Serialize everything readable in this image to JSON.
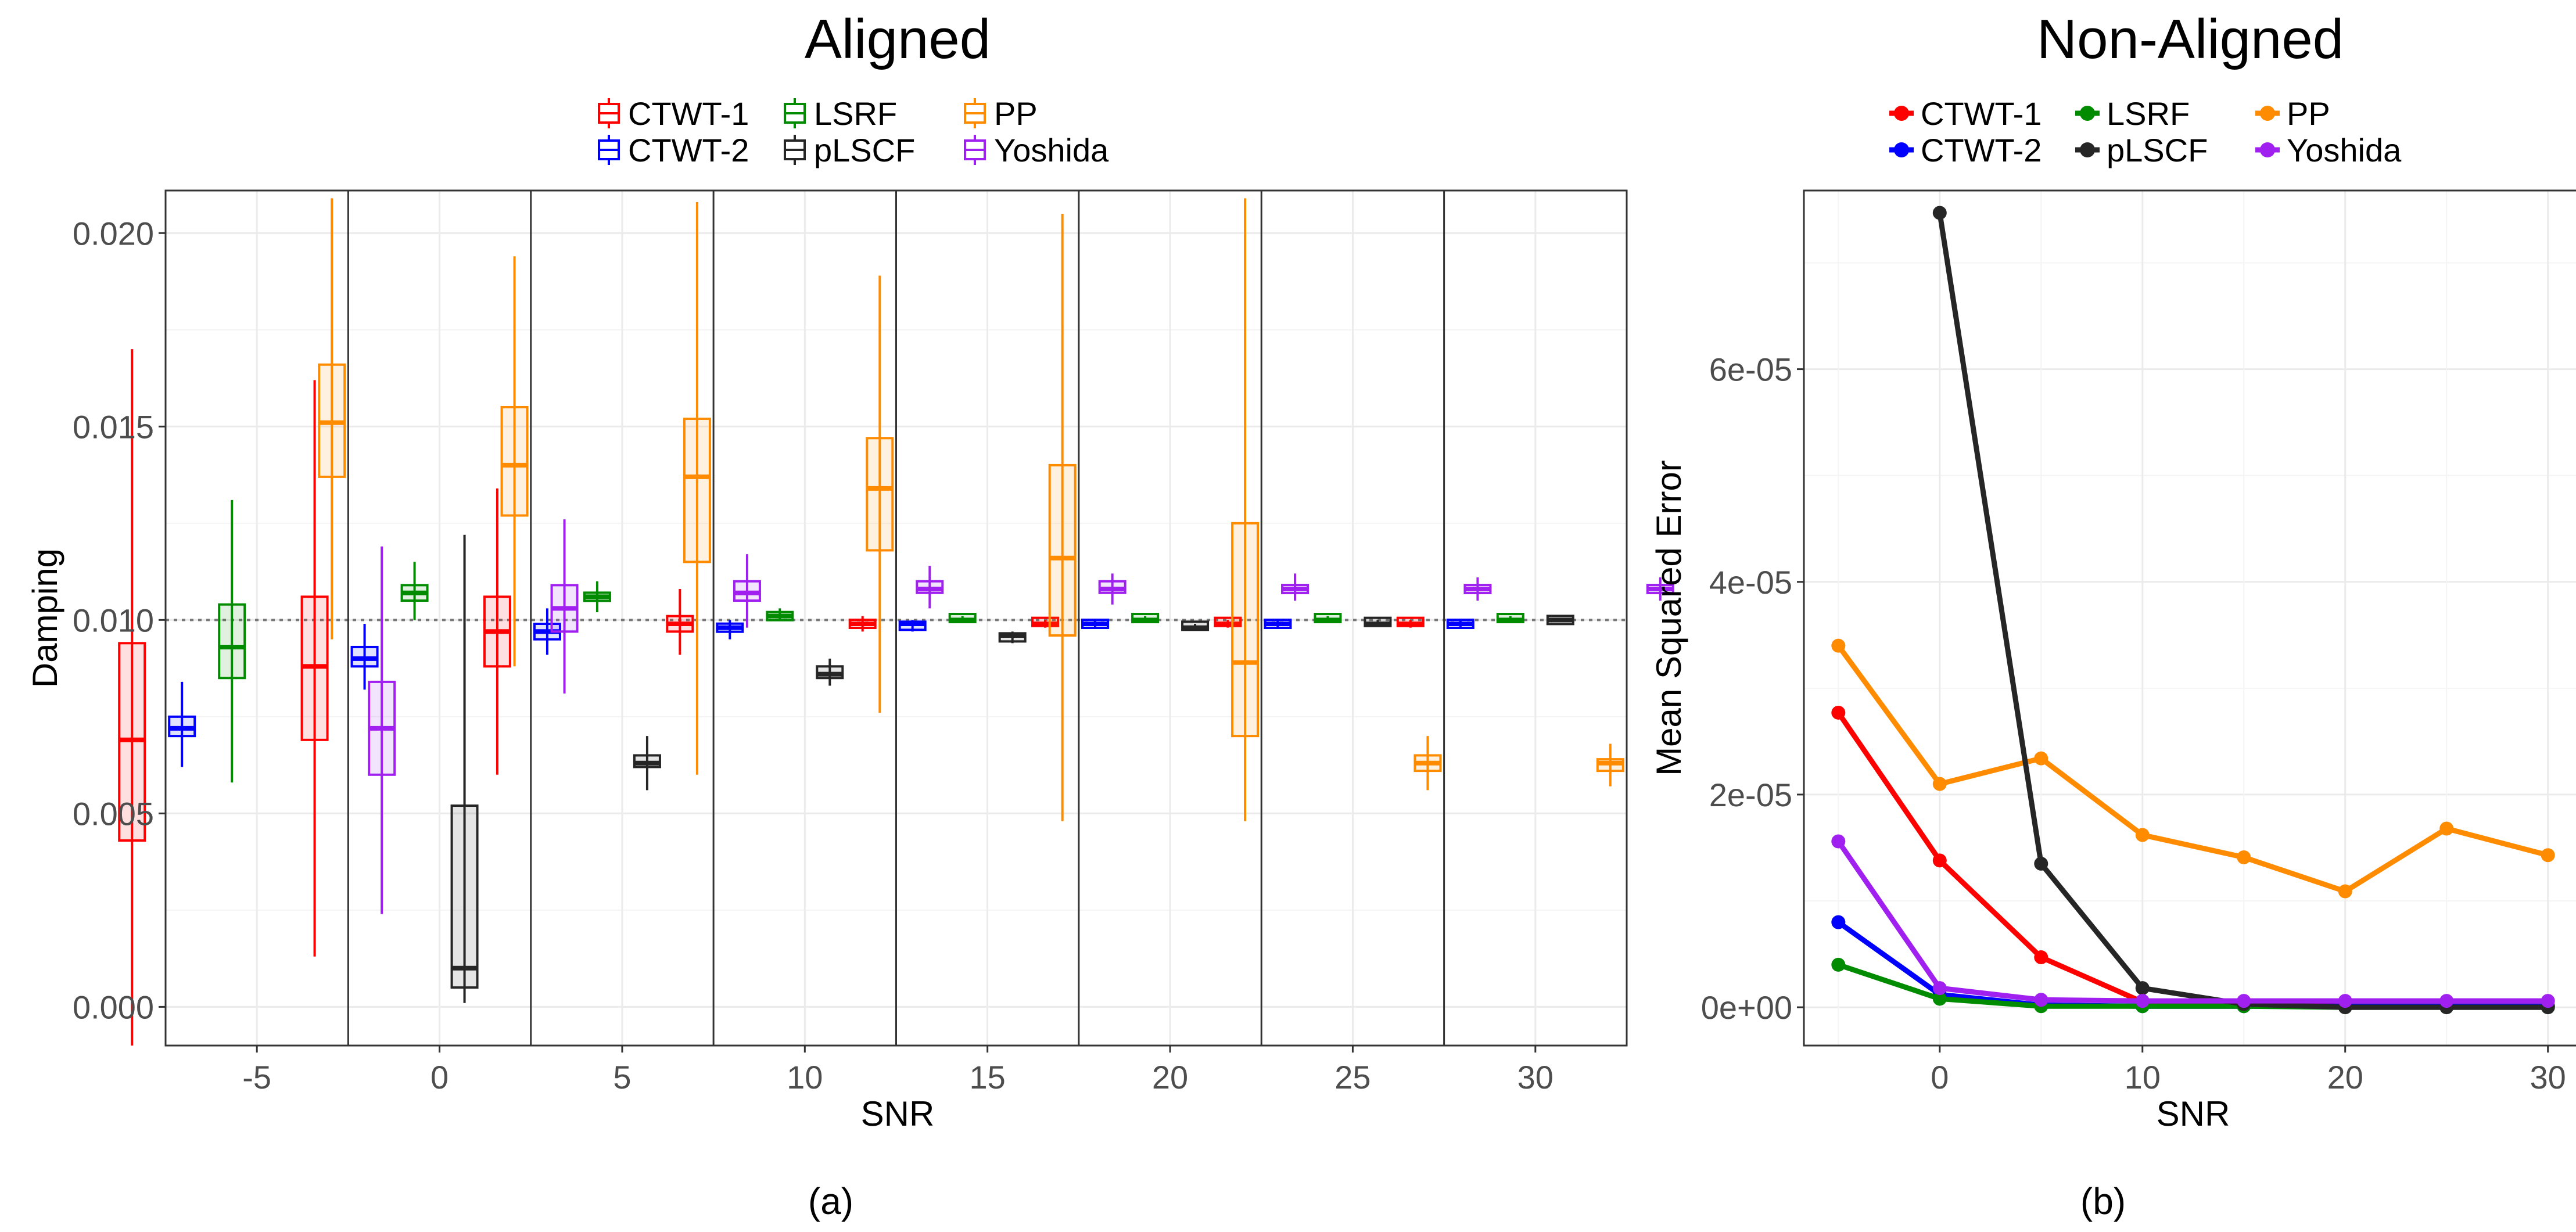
{
  "colors": {
    "CTWT-1": "#ff0000",
    "CTWT-2": "#0000ff",
    "LSRF": "#008b00",
    "pLSCF": "#262626",
    "PP": "#ff8c00",
    "Yoshida": "#a020f0"
  },
  "chart_data": [
    {
      "type": "boxplot",
      "panel_label": "(a)",
      "title": "Aligned",
      "xlabel": "SNR",
      "ylabel": "Damping",
      "categories": [
        "-5",
        "0",
        "5",
        "10",
        "15",
        "20",
        "25",
        "30"
      ],
      "y_ticks": [
        "0.000",
        "0.005",
        "0.010",
        "0.015",
        "0.020"
      ],
      "ylim": [
        -0.001,
        0.0211
      ],
      "reference_line": 0.01,
      "legend": [
        "CTWT-1",
        "LSRF",
        "PP",
        "CTWT-2",
        "pLSCF",
        "Yoshida"
      ],
      "series": [
        {
          "name": "CTWT-1",
          "boxes": [
            {
              "snr": -5,
              "whisker_low": -0.001,
              "q1": 0.0043,
              "median": 0.0069,
              "q3": 0.0094,
              "whisker_high": 0.017
            },
            {
              "snr": 0,
              "whisker_low": 0.0013,
              "q1": 0.0069,
              "median": 0.0088,
              "q3": 0.0106,
              "whisker_high": 0.0162
            },
            {
              "snr": 5,
              "whisker_low": 0.006,
              "q1": 0.0088,
              "median": 0.0097,
              "q3": 0.0106,
              "whisker_high": 0.0134
            },
            {
              "snr": 10,
              "whisker_low": 0.0091,
              "q1": 0.0097,
              "median": 0.0099,
              "q3": 0.0101,
              "whisker_high": 0.0108
            },
            {
              "snr": 15,
              "whisker_low": 0.0097,
              "q1": 0.0098,
              "median": 0.0099,
              "q3": 0.01,
              "whisker_high": 0.0101
            },
            {
              "snr": 20,
              "whisker_low": 0.0098,
              "q1": 0.0099,
              "median": 0.0099,
              "q3": 0.01,
              "whisker_high": 0.01
            },
            {
              "snr": 25,
              "whisker_low": 0.0098,
              "q1": 0.0099,
              "median": 0.0099,
              "q3": 0.01,
              "whisker_high": 0.01
            },
            {
              "snr": 30,
              "whisker_low": 0.0098,
              "q1": 0.0099,
              "median": 0.0099,
              "q3": 0.01,
              "whisker_high": 0.01
            }
          ]
        },
        {
          "name": "CTWT-2",
          "boxes": [
            {
              "snr": -5,
              "whisker_low": 0.0062,
              "q1": 0.007,
              "median": 0.0072,
              "q3": 0.0075,
              "whisker_high": 0.0084
            },
            {
              "snr": 0,
              "whisker_low": 0.0082,
              "q1": 0.0088,
              "median": 0.009,
              "q3": 0.0093,
              "whisker_high": 0.0099
            },
            {
              "snr": 5,
              "whisker_low": 0.0091,
              "q1": 0.0095,
              "median": 0.0097,
              "q3": 0.0099,
              "whisker_high": 0.0103
            },
            {
              "snr": 10,
              "whisker_low": 0.0095,
              "q1": 0.0097,
              "median": 0.0098,
              "q3": 0.0099,
              "whisker_high": 0.01
            },
            {
              "snr": 15,
              "whisker_low": 0.0097,
              "q1": 0.0098,
              "median": 0.0099,
              "q3": 0.0099,
              "whisker_high": 0.01
            },
            {
              "snr": 20,
              "whisker_low": 0.0098,
              "q1": 0.0099,
              "median": 0.0099,
              "q3": 0.0099,
              "whisker_high": 0.01
            },
            {
              "snr": 25,
              "whisker_low": 0.0098,
              "q1": 0.0099,
              "median": 0.0099,
              "q3": 0.0099,
              "whisker_high": 0.01
            },
            {
              "snr": 30,
              "whisker_low": 0.0098,
              "q1": 0.0099,
              "median": 0.0099,
              "q3": 0.0099,
              "whisker_high": 0.01
            }
          ]
        },
        {
          "name": "LSRF",
          "boxes": [
            {
              "snr": -5,
              "whisker_low": 0.0058,
              "q1": 0.0085,
              "median": 0.0093,
              "q3": 0.0104,
              "whisker_high": 0.0131
            },
            {
              "snr": 0,
              "whisker_low": 0.01,
              "q1": 0.0105,
              "median": 0.0107,
              "q3": 0.0109,
              "whisker_high": 0.0115
            },
            {
              "snr": 5,
              "whisker_low": 0.0102,
              "q1": 0.0105,
              "median": 0.0106,
              "q3": 0.0107,
              "whisker_high": 0.011
            },
            {
              "snr": 10,
              "whisker_low": 0.01,
              "q1": 0.01,
              "median": 0.0101,
              "q3": 0.0102,
              "whisker_high": 0.0103
            },
            {
              "snr": 15,
              "whisker_low": 0.01,
              "q1": 0.01,
              "median": 0.01,
              "q3": 0.0101,
              "whisker_high": 0.0101
            },
            {
              "snr": 20,
              "whisker_low": 0.01,
              "q1": 0.01,
              "median": 0.01,
              "q3": 0.0101,
              "whisker_high": 0.0101
            },
            {
              "snr": 25,
              "whisker_low": 0.01,
              "q1": 0.01,
              "median": 0.01,
              "q3": 0.0101,
              "whisker_high": 0.0101
            },
            {
              "snr": 30,
              "whisker_low": 0.01,
              "q1": 0.01,
              "median": 0.01,
              "q3": 0.0101,
              "whisker_high": 0.0101
            }
          ]
        },
        {
          "name": "pLSCF",
          "boxes": [
            {
              "snr": -5,
              "whisker_low": null,
              "q1": null,
              "median": null,
              "q3": null,
              "whisker_high": null
            },
            {
              "snr": 0,
              "whisker_low": 0.0001,
              "q1": 0.0005,
              "median": 0.001,
              "q3": 0.0052,
              "whisker_high": 0.0122
            },
            {
              "snr": 5,
              "whisker_low": 0.0056,
              "q1": 0.0062,
              "median": 0.0063,
              "q3": 0.0065,
              "whisker_high": 0.007
            },
            {
              "snr": 10,
              "whisker_low": 0.0083,
              "q1": 0.0085,
              "median": 0.0086,
              "q3": 0.0088,
              "whisker_high": 0.009
            },
            {
              "snr": 15,
              "whisker_low": 0.0094,
              "q1": 0.0095,
              "median": 0.0096,
              "q3": 0.0096,
              "whisker_high": 0.0097
            },
            {
              "snr": 20,
              "whisker_low": 0.0098,
              "q1": 0.0098,
              "median": 0.0098,
              "q3": 0.0099,
              "whisker_high": 0.0099
            },
            {
              "snr": 25,
              "whisker_low": 0.0099,
              "q1": 0.0099,
              "median": 0.0099,
              "q3": 0.01,
              "whisker_high": 0.01
            },
            {
              "snr": 30,
              "whisker_low": 0.01,
              "q1": 0.01,
              "median": 0.01,
              "q3": 0.01,
              "whisker_high": 0.01
            }
          ]
        },
        {
          "name": "PP",
          "boxes": [
            {
              "snr": -5,
              "whisker_low": 0.0095,
              "q1": 0.0137,
              "median": 0.0151,
              "q3": 0.0166,
              "whisker_high": 0.0209
            },
            {
              "snr": 0,
              "whisker_low": 0.0088,
              "q1": 0.0127,
              "median": 0.014,
              "q3": 0.0155,
              "whisker_high": 0.0194
            },
            {
              "snr": 5,
              "whisker_low": 0.006,
              "q1": 0.0115,
              "median": 0.0137,
              "q3": 0.0152,
              "whisker_high": 0.0208
            },
            {
              "snr": 10,
              "whisker_low": 0.0076,
              "q1": 0.0118,
              "median": 0.0134,
              "q3": 0.0147,
              "whisker_high": 0.0189
            },
            {
              "snr": 15,
              "whisker_low": 0.0048,
              "q1": 0.0096,
              "median": 0.0116,
              "q3": 0.014,
              "whisker_high": 0.0205
            },
            {
              "snr": 20,
              "whisker_low": 0.0048,
              "q1": 0.007,
              "median": 0.0089,
              "q3": 0.0125,
              "whisker_high": 0.0209
            },
            {
              "snr": 25,
              "whisker_low": 0.0056,
              "q1": 0.0061,
              "median": 0.0063,
              "q3": 0.0065,
              "whisker_high": 0.007
            },
            {
              "snr": 30,
              "whisker_low": 0.0057,
              "q1": 0.0061,
              "median": 0.0063,
              "q3": 0.0064,
              "whisker_high": 0.0068
            }
          ]
        },
        {
          "name": "Yoshida",
          "boxes": [
            {
              "snr": -5,
              "whisker_low": 0.0024,
              "q1": 0.006,
              "median": 0.0072,
              "q3": 0.0084,
              "whisker_high": 0.0119
            },
            {
              "snr": 0,
              "whisker_low": 0.0081,
              "q1": 0.0097,
              "median": 0.0103,
              "q3": 0.0109,
              "whisker_high": 0.0126
            },
            {
              "snr": 5,
              "whisker_low": 0.0098,
              "q1": 0.0105,
              "median": 0.0107,
              "q3": 0.011,
              "whisker_high": 0.0117
            },
            {
              "snr": 10,
              "whisker_low": 0.0103,
              "q1": 0.0107,
              "median": 0.0108,
              "q3": 0.011,
              "whisker_high": 0.0114
            },
            {
              "snr": 15,
              "whisker_low": 0.0104,
              "q1": 0.0107,
              "median": 0.0108,
              "q3": 0.011,
              "whisker_high": 0.0112
            },
            {
              "snr": 20,
              "whisker_low": 0.0105,
              "q1": 0.0107,
              "median": 0.0108,
              "q3": 0.0109,
              "whisker_high": 0.0112
            },
            {
              "snr": 25,
              "whisker_low": 0.0105,
              "q1": 0.0107,
              "median": 0.0108,
              "q3": 0.0109,
              "whisker_high": 0.0111
            },
            {
              "snr": 30,
              "whisker_low": 0.0105,
              "q1": 0.0107,
              "median": 0.0108,
              "q3": 0.0109,
              "whisker_high": 0.0111
            }
          ]
        }
      ]
    },
    {
      "type": "line",
      "panel_label": "(b)",
      "title": "Non-Aligned",
      "xlabel": "SNR",
      "ylabel": "Mean Squared Error",
      "x": [
        -5,
        0,
        5,
        10,
        15,
        20,
        25,
        30
      ],
      "x_ticks": [
        "0",
        "10",
        "20",
        "30"
      ],
      "y_ticks": [
        "0e+00",
        "2e-05",
        "4e-05",
        "6e-05"
      ],
      "xlim": [
        -6.7,
        31.7
      ],
      "ylim": [
        -3.6e-06,
        7.68e-05
      ],
      "legend": [
        "CTWT-1",
        "LSRF",
        "PP",
        "CTWT-2",
        "pLSCF",
        "Yoshida"
      ],
      "series": [
        {
          "name": "PP",
          "values": [
            3.4e-05,
            2.1e-05,
            2.34e-05,
            1.62e-05,
            1.41e-05,
            1.09e-05,
            1.68e-05,
            1.43e-05
          ]
        },
        {
          "name": "CTWT-1",
          "values": [
            2.77e-05,
            1.38e-05,
            4.7e-06,
            5e-07,
            2e-07,
            1e-07,
            1e-07,
            1e-07
          ]
        },
        {
          "name": "CTWT-2",
          "values": [
            8e-06,
            1.2e-06,
            2e-07,
            1e-07,
            1e-07,
            1e-07,
            1e-07,
            1e-07
          ]
        },
        {
          "name": "LSRF",
          "values": [
            4e-06,
            8e-07,
            1e-07,
            1e-07,
            1e-07,
            0,
            0,
            0
          ]
        },
        {
          "name": "pLSCF",
          "values": [
            null,
            7.47e-05,
            1.35e-05,
            1.8e-06,
            3e-07,
            0,
            0,
            0
          ]
        },
        {
          "name": "Yoshida",
          "values": [
            1.56e-05,
            1.8e-06,
            7e-07,
            6e-07,
            6e-07,
            6e-07,
            6e-07,
            6e-07
          ]
        }
      ]
    }
  ]
}
